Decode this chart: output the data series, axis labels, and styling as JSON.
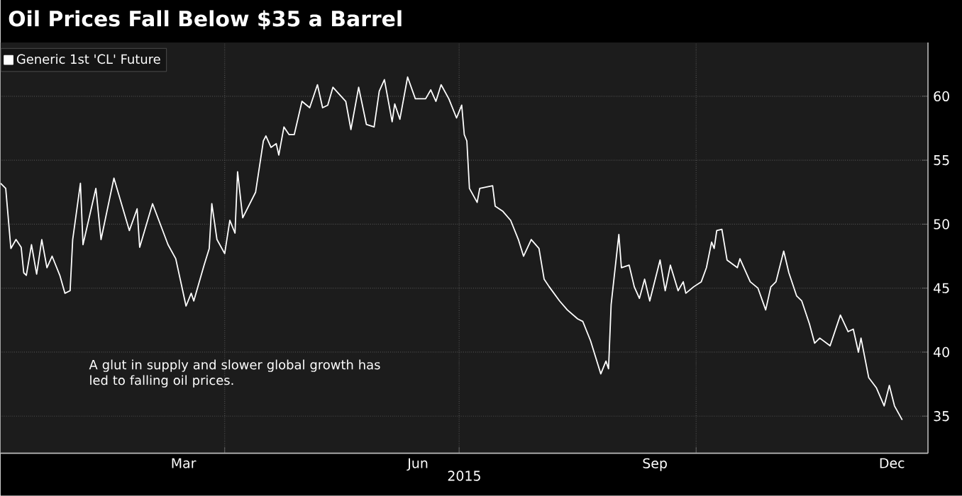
{
  "chart_data": {
    "type": "line",
    "title": "Oil Prices Fall Below $35 a Barrel",
    "xlabel": "2015",
    "annotations": [
      "A glut in supply and slower global growth has led to falling oil prices."
    ],
    "legend": "top left",
    "grid": true,
    "line_style": "solid",
    "xlim": [
      "2015-01-04",
      "2015-12-30"
    ],
    "xticks": [
      {
        "value": "2015-04-01",
        "label": null
      },
      {
        "value": "2015-07-01",
        "label": null
      },
      {
        "value": "2015-10-01",
        "label": null
      },
      {
        "value": "2015-03-16",
        "label": "Mar"
      },
      {
        "value": "2015-06-15",
        "label": "Jun"
      },
      {
        "value": "2015-09-15",
        "label": "Sep"
      },
      {
        "value": "2015-12-16",
        "label": "Dec"
      }
    ],
    "ylim": [
      32.1,
      64.2
    ],
    "yticks": [
      35,
      40,
      45,
      50,
      55,
      60
    ],
    "x": [
      "2015-01-04",
      "2015-01-06",
      "2015-01-08",
      "2015-01-10",
      "2015-01-12",
      "2015-01-13",
      "2015-01-14",
      "2015-01-16",
      "2015-01-18",
      "2015-01-20",
      "2015-01-22",
      "2015-01-24",
      "2015-01-27",
      "2015-01-29",
      "2015-01-31",
      "2015-02-01",
      "2015-02-04",
      "2015-02-05",
      "2015-02-10",
      "2015-02-12",
      "2015-02-17",
      "2015-02-23",
      "2015-02-26",
      "2015-02-27",
      "2015-03-04",
      "2015-03-10",
      "2015-03-13",
      "2015-03-17",
      "2015-03-19",
      "2015-03-20",
      "2015-03-24",
      "2015-03-26",
      "2015-03-27",
      "2015-03-29",
      "2015-04-01",
      "2015-04-03",
      "2015-04-05",
      "2015-04-06",
      "2015-04-08",
      "2015-04-13",
      "2015-04-16",
      "2015-04-17",
      "2015-04-19",
      "2015-04-21",
      "2015-04-22",
      "2015-04-24",
      "2015-04-26",
      "2015-04-28",
      "2015-05-01",
      "2015-05-04",
      "2015-05-07",
      "2015-05-09",
      "2015-05-11",
      "2015-05-13",
      "2015-05-18",
      "2015-05-20",
      "2015-05-23",
      "2015-05-26",
      "2015-05-29",
      "2015-05-31",
      "2015-06-02",
      "2015-06-05",
      "2015-06-06",
      "2015-06-08",
      "2015-06-11",
      "2015-06-14",
      "2015-06-18",
      "2015-06-20",
      "2015-06-22",
      "2015-06-24",
      "2015-06-27",
      "2015-06-30",
      "2015-07-02",
      "2015-07-03",
      "2015-07-04",
      "2015-07-05",
      "2015-07-08",
      "2015-07-09",
      "2015-07-14",
      "2015-07-15",
      "2015-07-18",
      "2015-07-21",
      "2015-07-24",
      "2015-07-26",
      "2015-07-29",
      "2015-08-01",
      "2015-08-03",
      "2015-08-05",
      "2015-08-09",
      "2015-08-12",
      "2015-08-16",
      "2015-08-18",
      "2015-08-21",
      "2015-08-25",
      "2015-08-27",
      "2015-08-28",
      "2015-08-29",
      "2015-09-01",
      "2015-09-02",
      "2015-09-05",
      "2015-09-07",
      "2015-09-09",
      "2015-09-11",
      "2015-09-13",
      "2015-09-17",
      "2015-09-19",
      "2015-09-21",
      "2015-09-24",
      "2015-09-26",
      "2015-09-27",
      "2015-09-30",
      "2015-10-03",
      "2015-10-05",
      "2015-10-07",
      "2015-10-08",
      "2015-10-09",
      "2015-10-11",
      "2015-10-13",
      "2015-10-17",
      "2015-10-18",
      "2015-10-22",
      "2015-10-25",
      "2015-10-28",
      "2015-10-30",
      "2015-11-01",
      "2015-11-04",
      "2015-11-06",
      "2015-11-09",
      "2015-11-11",
      "2015-11-14",
      "2015-11-16",
      "2015-11-18",
      "2015-11-22",
      "2015-11-26",
      "2015-11-29",
      "2015-12-01",
      "2015-12-03",
      "2015-12-04",
      "2015-12-07",
      "2015-12-10",
      "2015-12-13",
      "2015-12-15",
      "2015-12-17",
      "2015-12-20"
    ],
    "series": [
      {
        "name": "Generic 1st 'CL' Future",
        "color": "#ffffff",
        "values": [
          53.2,
          52.8,
          48.1,
          48.8,
          48.2,
          46.2,
          46.0,
          48.4,
          46.1,
          48.8,
          46.6,
          47.5,
          46.0,
          44.6,
          44.8,
          48.8,
          53.2,
          48.4,
          52.8,
          48.8,
          53.6,
          49.5,
          51.2,
          48.2,
          51.6,
          48.4,
          47.3,
          43.6,
          44.6,
          44.0,
          46.8,
          48.1,
          51.6,
          48.8,
          47.7,
          50.3,
          49.3,
          54.1,
          50.5,
          52.5,
          56.5,
          56.9,
          56.0,
          56.3,
          55.4,
          57.6,
          57.0,
          57.0,
          59.6,
          59.1,
          60.9,
          59.1,
          59.3,
          60.7,
          59.6,
          57.4,
          60.7,
          57.8,
          57.6,
          60.4,
          61.3,
          58.0,
          59.4,
          58.2,
          61.5,
          59.8,
          59.8,
          60.5,
          59.6,
          60.9,
          59.8,
          58.3,
          59.3,
          57.0,
          56.5,
          52.8,
          51.7,
          52.8,
          53.0,
          51.4,
          51.0,
          50.3,
          48.8,
          47.5,
          48.8,
          48.1,
          45.7,
          45.1,
          44.0,
          43.3,
          42.6,
          42.4,
          40.9,
          38.3,
          39.3,
          38.7,
          43.7,
          49.2,
          46.6,
          46.8,
          45.1,
          44.2,
          45.7,
          44.0,
          47.2,
          44.8,
          46.8,
          44.8,
          45.5,
          44.6,
          45.1,
          45.5,
          46.6,
          48.6,
          48.1,
          49.5,
          49.6,
          47.2,
          46.6,
          47.3,
          45.5,
          45.0,
          43.3,
          45.1,
          45.5,
          47.9,
          46.2,
          44.4,
          44.0,
          42.2,
          40.7,
          41.1,
          40.5,
          42.9,
          41.6,
          41.8,
          40.0,
          41.1,
          38.0,
          37.2,
          35.8,
          37.4,
          35.8,
          34.7
        ]
      }
    ]
  }
}
